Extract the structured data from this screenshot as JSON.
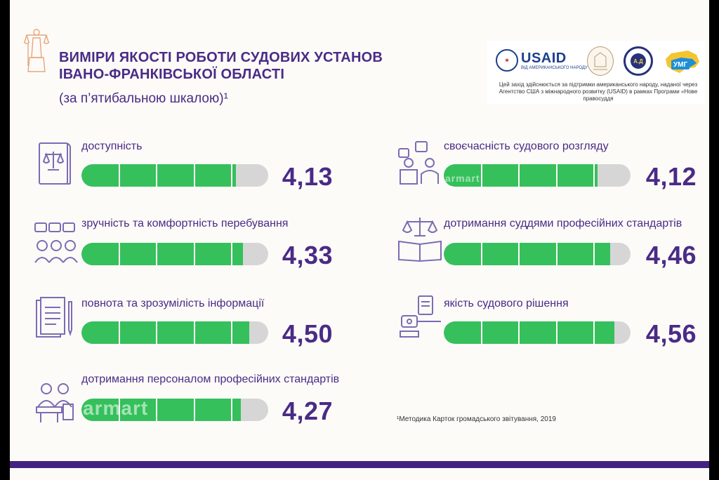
{
  "header": {
    "title_line1": "ВИМІРИ ЯКОСТІ РОБОТИ СУДОВИХ УСТАНОВ",
    "title_line2": "ІВАНО-ФРАНКІВСЬКОЇ ОБЛАСТІ",
    "subtitle": "(за п’ятибальною шкалою)¹"
  },
  "logos": {
    "usaid": "USAID",
    "usaid_sub": "ВІД АМЕРИКАНСЬКОГО НАРОДУ",
    "umg": "УМГ",
    "caption": "Цей захід здійснюється за підтримки американського народу, наданої через Агентство США з міжнародного розвитку (USAID) в рамках Програми «Нове правосуддя"
  },
  "metrics": [
    {
      "label": "доступність",
      "value_text": "4,13",
      "score": 4.13,
      "icon": "law-book-icon"
    },
    {
      "label": "зручність та комфортність перебування",
      "value_text": "4,33",
      "score": 4.33,
      "icon": "people-feedback-icon"
    },
    {
      "label": "повнота та зрозумілість інформації",
      "value_text": "4,50",
      "score": 4.5,
      "icon": "documents-icon"
    },
    {
      "label": "дотримання персоналом професійних стандартів",
      "value_text": "4,27",
      "score": 4.27,
      "icon": "staff-desk-icon"
    },
    {
      "label": "своєчасність судового розгляду",
      "value_text": "4,12",
      "score": 4.12,
      "icon": "court-hearing-icon"
    },
    {
      "label": "дотримання суддями професійних стандартів",
      "value_text": "4,46",
      "score": 4.46,
      "icon": "scales-book-icon"
    },
    {
      "label": "якість судового рішення",
      "value_text": "4,56",
      "score": 4.56,
      "icon": "gavel-decision-icon"
    }
  ],
  "scale_max": 5,
  "footnote": "¹Методика Карток громадського звітування, 2019",
  "watermark": "armart",
  "colors": {
    "accent": "#4a2b86",
    "bar_fill": "#35c05c",
    "bar_track": "#d6d6d6",
    "bottom_bar": "#43237f"
  }
}
